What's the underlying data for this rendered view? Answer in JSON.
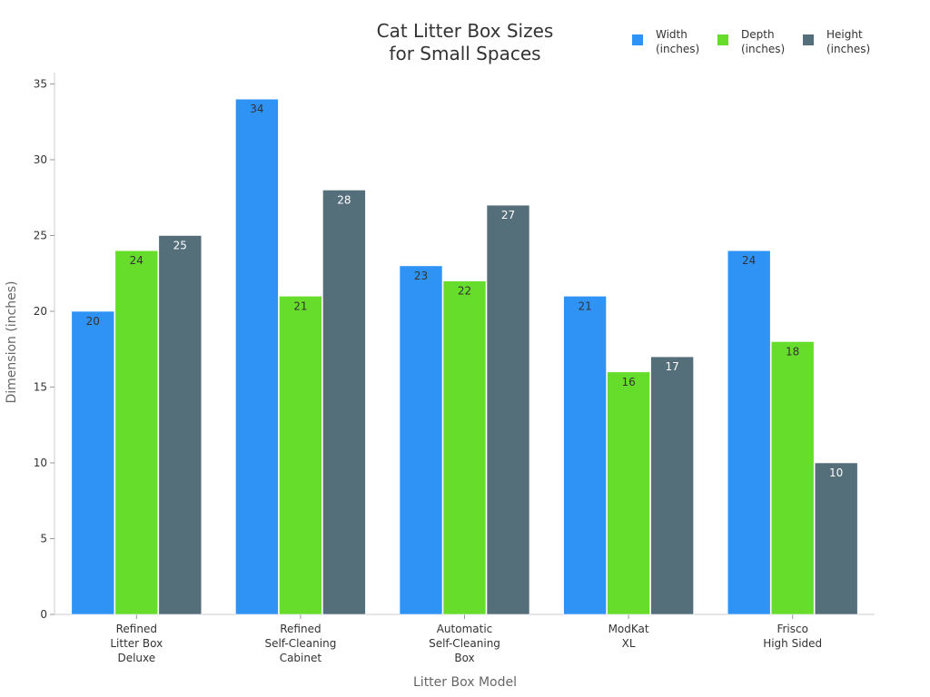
{
  "chart_data": {
    "type": "bar",
    "title": [
      "Cat Litter Box Sizes",
      "for Small Spaces"
    ],
    "xlabel": "Litter Box Model",
    "ylabel": "Dimension (inches)",
    "ylim": [
      0,
      36
    ],
    "yticks": [
      0,
      5,
      10,
      15,
      20,
      25,
      30,
      35
    ],
    "grid": false,
    "legend_position": "top-right",
    "categories": [
      [
        "Refined",
        "Litter Box",
        "Deluxe"
      ],
      [
        "Refined",
        "Self-Cleaning",
        "Cabinet"
      ],
      [
        "Automatic",
        "Self-Cleaning",
        "Box"
      ],
      [
        "ModKat",
        "XL"
      ],
      [
        "Frisco",
        "High Sided"
      ]
    ],
    "series": [
      {
        "name": [
          "Width",
          "(inches)"
        ],
        "color": "#2f93f5",
        "label_color": "#333333",
        "values": [
          20,
          34,
          23,
          21,
          24
        ]
      },
      {
        "name": [
          "Depth",
          "(inches)"
        ],
        "color": "#66dd2a",
        "label_color": "#333333",
        "values": [
          24,
          21,
          22,
          16,
          18
        ]
      },
      {
        "name": [
          "Height",
          "(inches)"
        ],
        "color": "#546e7a",
        "label_color": "#ffffff",
        "values": [
          25,
          28,
          27,
          17,
          10
        ]
      }
    ]
  }
}
